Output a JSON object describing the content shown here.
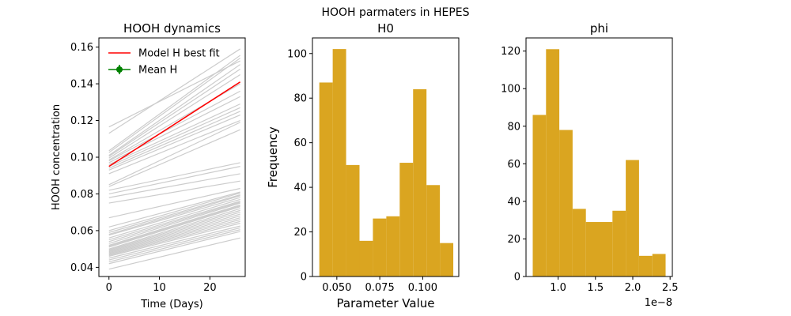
{
  "suptitle": "HOOH parmaters in HEPES",
  "chart_data": [
    {
      "type": "line",
      "title": "HOOH dynamics",
      "xlabel": "Time (Days)",
      "ylabel": "HOOH concentration",
      "xlim": [
        -2,
        27
      ],
      "ylim": [
        0.035,
        0.165
      ],
      "xticks": [
        0,
        10,
        20
      ],
      "xtick_labels": [
        "0",
        "10",
        "20"
      ],
      "yticks": [
        0.04,
        0.06,
        0.08,
        0.1,
        0.12,
        0.14,
        0.16
      ],
      "ytick_labels": [
        "0.04",
        "0.06",
        "0.08",
        "0.10",
        "0.12",
        "0.14",
        "0.16"
      ],
      "grid": false,
      "legend": {
        "placement": "top-left",
        "entries": [
          " Model H best fit",
          "Mean H"
        ]
      },
      "colors": {
        "best_fit": "#ff0000",
        "mean": "#008000",
        "ensemble": "#cccccc"
      },
      "best_fit": {
        "name": " Model H best fit",
        "x": [
          0,
          26
        ],
        "y": [
          0.095,
          0.141
        ]
      },
      "mean": {
        "name": "Mean H",
        "x": [],
        "y": []
      },
      "ensemble": {
        "x": [
          0,
          26
        ],
        "lines": [
          [
            0.1165,
            0.1525
          ],
          [
            0.113,
            0.159
          ],
          [
            0.1035,
            0.1555
          ],
          [
            0.1025,
            0.154
          ],
          [
            0.101,
            0.1505
          ],
          [
            0.1005,
            0.148
          ],
          [
            0.0995,
            0.145
          ],
          [
            0.0985,
            0.14
          ],
          [
            0.098,
            0.136
          ],
          [
            0.097,
            0.133
          ],
          [
            0.096,
            0.129
          ],
          [
            0.095,
            0.127
          ],
          [
            0.094,
            0.125
          ],
          [
            0.093,
            0.123
          ],
          [
            0.091,
            0.12
          ],
          [
            0.085,
            0.119
          ],
          [
            0.084,
            0.115
          ],
          [
            0.082,
            0.097
          ],
          [
            0.08,
            0.095
          ],
          [
            0.078,
            0.091
          ],
          [
            0.075,
            0.087
          ],
          [
            0.067,
            0.083
          ],
          [
            0.062,
            0.081
          ],
          [
            0.06,
            0.0805
          ],
          [
            0.059,
            0.0795
          ],
          [
            0.058,
            0.079
          ],
          [
            0.0575,
            0.078
          ],
          [
            0.056,
            0.077
          ],
          [
            0.055,
            0.076
          ],
          [
            0.054,
            0.0755
          ],
          [
            0.053,
            0.075
          ],
          [
            0.052,
            0.074
          ],
          [
            0.0515,
            0.0735
          ],
          [
            0.051,
            0.073
          ],
          [
            0.05,
            0.072
          ],
          [
            0.0495,
            0.071
          ],
          [
            0.049,
            0.07
          ],
          [
            0.0485,
            0.069
          ],
          [
            0.048,
            0.068
          ],
          [
            0.0475,
            0.067
          ],
          [
            0.047,
            0.066
          ],
          [
            0.0465,
            0.065
          ],
          [
            0.046,
            0.064
          ],
          [
            0.045,
            0.0625
          ],
          [
            0.044,
            0.0615
          ],
          [
            0.043,
            0.0605
          ],
          [
            0.042,
            0.0595
          ],
          [
            0.039,
            0.056
          ]
        ]
      }
    },
    {
      "type": "bar",
      "subtype": "histogram",
      "title": "H0",
      "xlabel": "Parameter Value",
      "ylabel": "Frequency",
      "bar_color": "#daa520",
      "xlim": [
        0.0358,
        0.121
      ],
      "ylim": [
        0,
        107
      ],
      "xticks": [
        0.05,
        0.075,
        0.1
      ],
      "xtick_labels": [
        "0.050",
        "0.075",
        "0.100"
      ],
      "yticks": [
        0,
        20,
        40,
        60,
        80,
        100
      ],
      "ytick_labels": [
        "0",
        "20",
        "40",
        "60",
        "80",
        "100"
      ],
      "bin_edges": [
        0.0398,
        0.0476,
        0.0554,
        0.0632,
        0.071,
        0.0788,
        0.0866,
        0.0944,
        0.1022,
        0.11,
        0.1178
      ],
      "values": [
        87,
        102,
        50,
        16,
        26,
        27,
        51,
        84,
        41,
        15
      ]
    },
    {
      "type": "bar",
      "subtype": "histogram",
      "title": "phi",
      "xlabel": "",
      "ylabel": "",
      "bar_color": "#daa520",
      "scale_label": "1e−8",
      "xlim": [
        0.57,
        2.53
      ],
      "ylim": [
        0,
        127
      ],
      "xticks": [
        1.0,
        1.5,
        2.0,
        2.5
      ],
      "xtick_labels": [
        "1.0",
        "1.5",
        "2.0",
        "2.5"
      ],
      "yticks": [
        0,
        20,
        40,
        60,
        80,
        100,
        120
      ],
      "ytick_labels": [
        "0",
        "20",
        "40",
        "60",
        "80",
        "100",
        "120"
      ],
      "bin_edges": [
        0.66,
        0.838,
        1.016,
        1.194,
        1.372,
        1.55,
        1.728,
        1.906,
        2.084,
        2.262,
        2.44
      ],
      "values": [
        86,
        121,
        78,
        36,
        29,
        29,
        35,
        62,
        11,
        12
      ]
    }
  ]
}
